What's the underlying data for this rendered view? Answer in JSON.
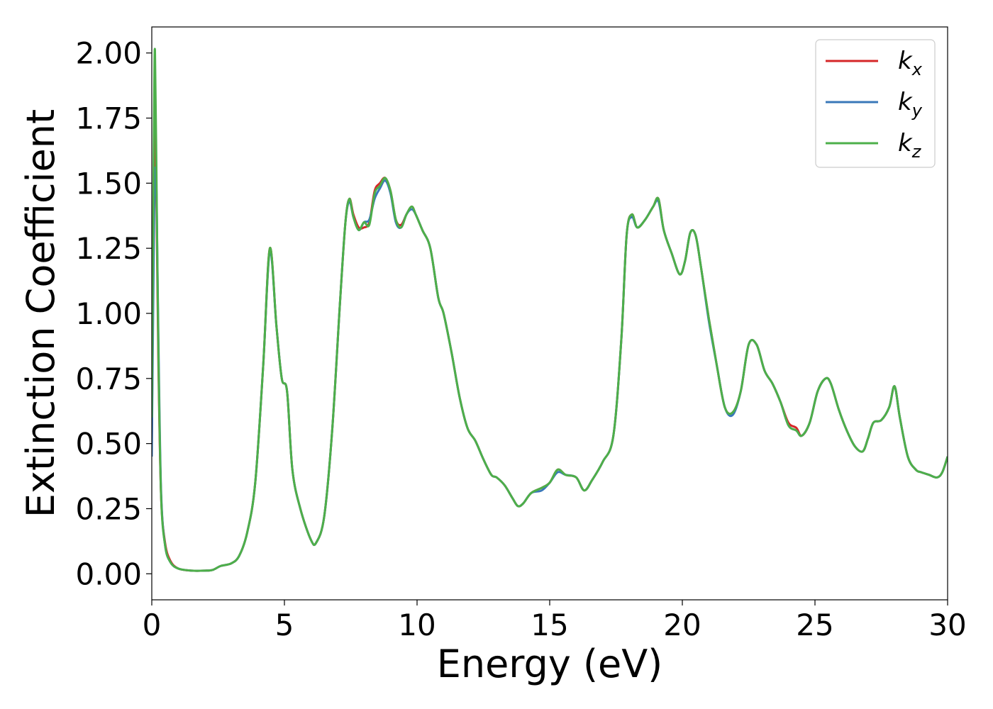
{
  "chart_data": {
    "type": "line",
    "xlabel": "Energy (eV)",
    "ylabel": "Extinction Coefficient",
    "xlim": [
      0,
      30
    ],
    "ylim": [
      -0.1,
      2.1
    ],
    "xticks": [
      "0",
      "5",
      "10",
      "15",
      "20",
      "25",
      "30"
    ],
    "yticks": [
      "0.00",
      "0.25",
      "0.50",
      "0.75",
      "1.00",
      "1.25",
      "1.50",
      "1.75",
      "2.00"
    ],
    "legend": {
      "position": "top-right",
      "entries": [
        {
          "base": "k",
          "sub": "x"
        },
        {
          "base": "k",
          "sub": "y"
        },
        {
          "base": "k",
          "sub": "z"
        }
      ]
    },
    "series": [
      {
        "name": "kx",
        "color": "#d62728",
        "x": [
          0.0,
          0.08,
          0.12,
          0.18,
          0.25,
          0.35,
          0.5,
          0.7,
          1.0,
          1.5,
          2.0,
          2.3,
          2.6,
          3.0,
          3.3,
          3.6,
          3.9,
          4.2,
          4.45,
          4.7,
          4.9,
          5.1,
          5.3,
          5.6,
          6.0,
          6.2,
          6.5,
          6.8,
          7.1,
          7.3,
          7.45,
          7.6,
          7.8,
          8.0,
          8.2,
          8.4,
          8.6,
          8.8,
          9.0,
          9.2,
          9.4,
          9.6,
          9.8,
          9.95,
          10.2,
          10.5,
          10.8,
          11.0,
          11.3,
          11.6,
          11.9,
          12.2,
          12.5,
          12.8,
          13.0,
          13.3,
          13.6,
          13.8,
          14.0,
          14.3,
          14.7,
          15.0,
          15.3,
          15.6,
          16.0,
          16.3,
          16.6,
          17.0,
          17.4,
          17.7,
          17.9,
          18.1,
          18.3,
          18.6,
          18.9,
          19.1,
          19.3,
          19.6,
          19.9,
          20.1,
          20.3,
          20.5,
          20.7,
          21.0,
          21.3,
          21.6,
          21.9,
          22.2,
          22.5,
          22.8,
          23.1,
          23.4,
          23.7,
          24.0,
          24.3,
          24.5,
          24.8,
          25.1,
          25.4,
          25.6,
          25.9,
          26.2,
          26.5,
          26.8,
          27.0,
          27.2,
          27.5,
          27.8,
          28.0,
          28.2,
          28.5,
          28.8,
          29.0,
          29.3,
          29.6,
          29.8,
          30.0
        ],
        "y": [
          0.5,
          1.5,
          1.78,
          1.4,
          0.8,
          0.3,
          0.12,
          0.05,
          0.02,
          0.012,
          0.012,
          0.015,
          0.03,
          0.04,
          0.07,
          0.16,
          0.35,
          0.8,
          1.25,
          0.95,
          0.75,
          0.7,
          0.4,
          0.25,
          0.13,
          0.12,
          0.22,
          0.55,
          1.05,
          1.35,
          1.44,
          1.38,
          1.33,
          1.33,
          1.35,
          1.47,
          1.5,
          1.52,
          1.47,
          1.36,
          1.34,
          1.38,
          1.41,
          1.38,
          1.32,
          1.25,
          1.06,
          1.0,
          0.85,
          0.68,
          0.56,
          0.51,
          0.44,
          0.38,
          0.37,
          0.34,
          0.29,
          0.26,
          0.27,
          0.31,
          0.33,
          0.35,
          0.4,
          0.38,
          0.37,
          0.32,
          0.36,
          0.43,
          0.53,
          0.9,
          1.3,
          1.38,
          1.33,
          1.36,
          1.41,
          1.44,
          1.32,
          1.23,
          1.15,
          1.2,
          1.31,
          1.3,
          1.18,
          0.98,
          0.8,
          0.64,
          0.62,
          0.7,
          0.88,
          0.88,
          0.78,
          0.73,
          0.66,
          0.58,
          0.56,
          0.53,
          0.58,
          0.7,
          0.75,
          0.73,
          0.63,
          0.55,
          0.49,
          0.47,
          0.52,
          0.58,
          0.59,
          0.64,
          0.72,
          0.6,
          0.45,
          0.4,
          0.39,
          0.38,
          0.37,
          0.39,
          0.45
        ]
      },
      {
        "name": "ky",
        "color": "#3a78b9",
        "x": [
          0.0,
          0.08,
          0.12,
          0.18,
          0.25,
          0.35,
          0.5,
          0.7,
          1.0,
          1.5,
          2.0,
          2.3,
          2.6,
          3.0,
          3.3,
          3.6,
          3.9,
          4.2,
          4.45,
          4.7,
          4.9,
          5.1,
          5.3,
          5.6,
          6.0,
          6.2,
          6.5,
          6.8,
          7.1,
          7.3,
          7.45,
          7.6,
          7.8,
          8.0,
          8.2,
          8.4,
          8.6,
          8.8,
          9.0,
          9.2,
          9.4,
          9.6,
          9.8,
          9.95,
          10.2,
          10.5,
          10.8,
          11.0,
          11.3,
          11.6,
          11.9,
          12.2,
          12.5,
          12.8,
          13.0,
          13.3,
          13.6,
          13.8,
          14.0,
          14.3,
          14.7,
          15.0,
          15.3,
          15.6,
          16.0,
          16.3,
          16.6,
          17.0,
          17.4,
          17.7,
          17.9,
          18.1,
          18.3,
          18.6,
          18.9,
          19.1,
          19.3,
          19.6,
          19.9,
          20.1,
          20.3,
          20.5,
          20.7,
          21.0,
          21.3,
          21.6,
          21.9,
          22.2,
          22.5,
          22.8,
          23.1,
          23.4,
          23.7,
          24.0,
          24.3,
          24.5,
          24.8,
          25.1,
          25.4,
          25.6,
          25.9,
          26.2,
          26.5,
          26.8,
          27.0,
          27.2,
          27.5,
          27.8,
          28.0,
          28.2,
          28.5,
          28.8,
          29.0,
          29.3,
          29.6,
          29.8,
          30.0
        ],
        "y": [
          0.45,
          1.3,
          1.55,
          1.45,
          0.9,
          0.32,
          0.11,
          0.045,
          0.02,
          0.012,
          0.012,
          0.015,
          0.03,
          0.04,
          0.07,
          0.16,
          0.35,
          0.8,
          1.24,
          0.95,
          0.75,
          0.7,
          0.4,
          0.25,
          0.13,
          0.12,
          0.22,
          0.55,
          1.05,
          1.35,
          1.43,
          1.37,
          1.32,
          1.35,
          1.36,
          1.44,
          1.48,
          1.51,
          1.46,
          1.35,
          1.33,
          1.38,
          1.4,
          1.38,
          1.32,
          1.25,
          1.06,
          1.0,
          0.85,
          0.68,
          0.56,
          0.51,
          0.44,
          0.38,
          0.37,
          0.34,
          0.29,
          0.26,
          0.27,
          0.31,
          0.32,
          0.35,
          0.39,
          0.38,
          0.37,
          0.32,
          0.36,
          0.43,
          0.53,
          0.9,
          1.3,
          1.37,
          1.33,
          1.36,
          1.41,
          1.43,
          1.32,
          1.23,
          1.15,
          1.2,
          1.31,
          1.3,
          1.18,
          0.97,
          0.8,
          0.64,
          0.61,
          0.7,
          0.88,
          0.88,
          0.78,
          0.73,
          0.66,
          0.57,
          0.55,
          0.53,
          0.58,
          0.7,
          0.75,
          0.73,
          0.63,
          0.55,
          0.49,
          0.47,
          0.52,
          0.58,
          0.59,
          0.64,
          0.72,
          0.6,
          0.45,
          0.4,
          0.39,
          0.38,
          0.37,
          0.39,
          0.45
        ]
      },
      {
        "name": "kz",
        "color": "#4daf4a",
        "x": [
          0.0,
          0.08,
          0.12,
          0.18,
          0.25,
          0.35,
          0.5,
          0.7,
          1.0,
          1.5,
          2.0,
          2.3,
          2.6,
          3.0,
          3.3,
          3.6,
          3.9,
          4.2,
          4.45,
          4.7,
          4.9,
          5.1,
          5.3,
          5.6,
          6.0,
          6.2,
          6.5,
          6.8,
          7.1,
          7.3,
          7.45,
          7.6,
          7.8,
          8.0,
          8.2,
          8.4,
          8.6,
          8.8,
          9.0,
          9.2,
          9.4,
          9.6,
          9.8,
          9.95,
          10.2,
          10.5,
          10.8,
          11.0,
          11.3,
          11.6,
          11.9,
          12.2,
          12.5,
          12.8,
          13.0,
          13.3,
          13.6,
          13.8,
          14.0,
          14.3,
          14.7,
          15.0,
          15.3,
          15.6,
          16.0,
          16.3,
          16.6,
          17.0,
          17.4,
          17.7,
          17.9,
          18.1,
          18.3,
          18.6,
          18.9,
          19.1,
          19.3,
          19.6,
          19.9,
          20.1,
          20.3,
          20.5,
          20.7,
          21.0,
          21.3,
          21.6,
          21.9,
          22.2,
          22.5,
          22.8,
          23.1,
          23.4,
          23.7,
          24.0,
          24.3,
          24.5,
          24.8,
          25.1,
          25.4,
          25.6,
          25.9,
          26.2,
          26.5,
          26.8,
          27.0,
          27.2,
          27.5,
          27.8,
          28.0,
          28.2,
          28.5,
          28.8,
          29.0,
          29.3,
          29.6,
          29.8,
          30.0
        ],
        "y": [
          0.6,
          1.7,
          2.01,
          1.5,
          0.85,
          0.3,
          0.11,
          0.045,
          0.02,
          0.012,
          0.012,
          0.015,
          0.03,
          0.04,
          0.07,
          0.16,
          0.35,
          0.8,
          1.25,
          0.95,
          0.75,
          0.7,
          0.4,
          0.25,
          0.13,
          0.12,
          0.22,
          0.55,
          1.05,
          1.35,
          1.44,
          1.37,
          1.32,
          1.35,
          1.34,
          1.46,
          1.49,
          1.52,
          1.47,
          1.36,
          1.33,
          1.38,
          1.41,
          1.38,
          1.32,
          1.25,
          1.06,
          1.0,
          0.85,
          0.68,
          0.56,
          0.51,
          0.44,
          0.38,
          0.37,
          0.34,
          0.29,
          0.26,
          0.27,
          0.31,
          0.33,
          0.35,
          0.4,
          0.38,
          0.37,
          0.32,
          0.36,
          0.43,
          0.53,
          0.9,
          1.3,
          1.38,
          1.33,
          1.36,
          1.41,
          1.44,
          1.32,
          1.23,
          1.15,
          1.2,
          1.31,
          1.3,
          1.18,
          0.98,
          0.8,
          0.64,
          0.62,
          0.7,
          0.88,
          0.88,
          0.78,
          0.73,
          0.66,
          0.57,
          0.55,
          0.53,
          0.58,
          0.7,
          0.75,
          0.73,
          0.63,
          0.55,
          0.49,
          0.47,
          0.52,
          0.58,
          0.59,
          0.64,
          0.72,
          0.6,
          0.45,
          0.4,
          0.39,
          0.38,
          0.37,
          0.39,
          0.45
        ]
      }
    ]
  }
}
